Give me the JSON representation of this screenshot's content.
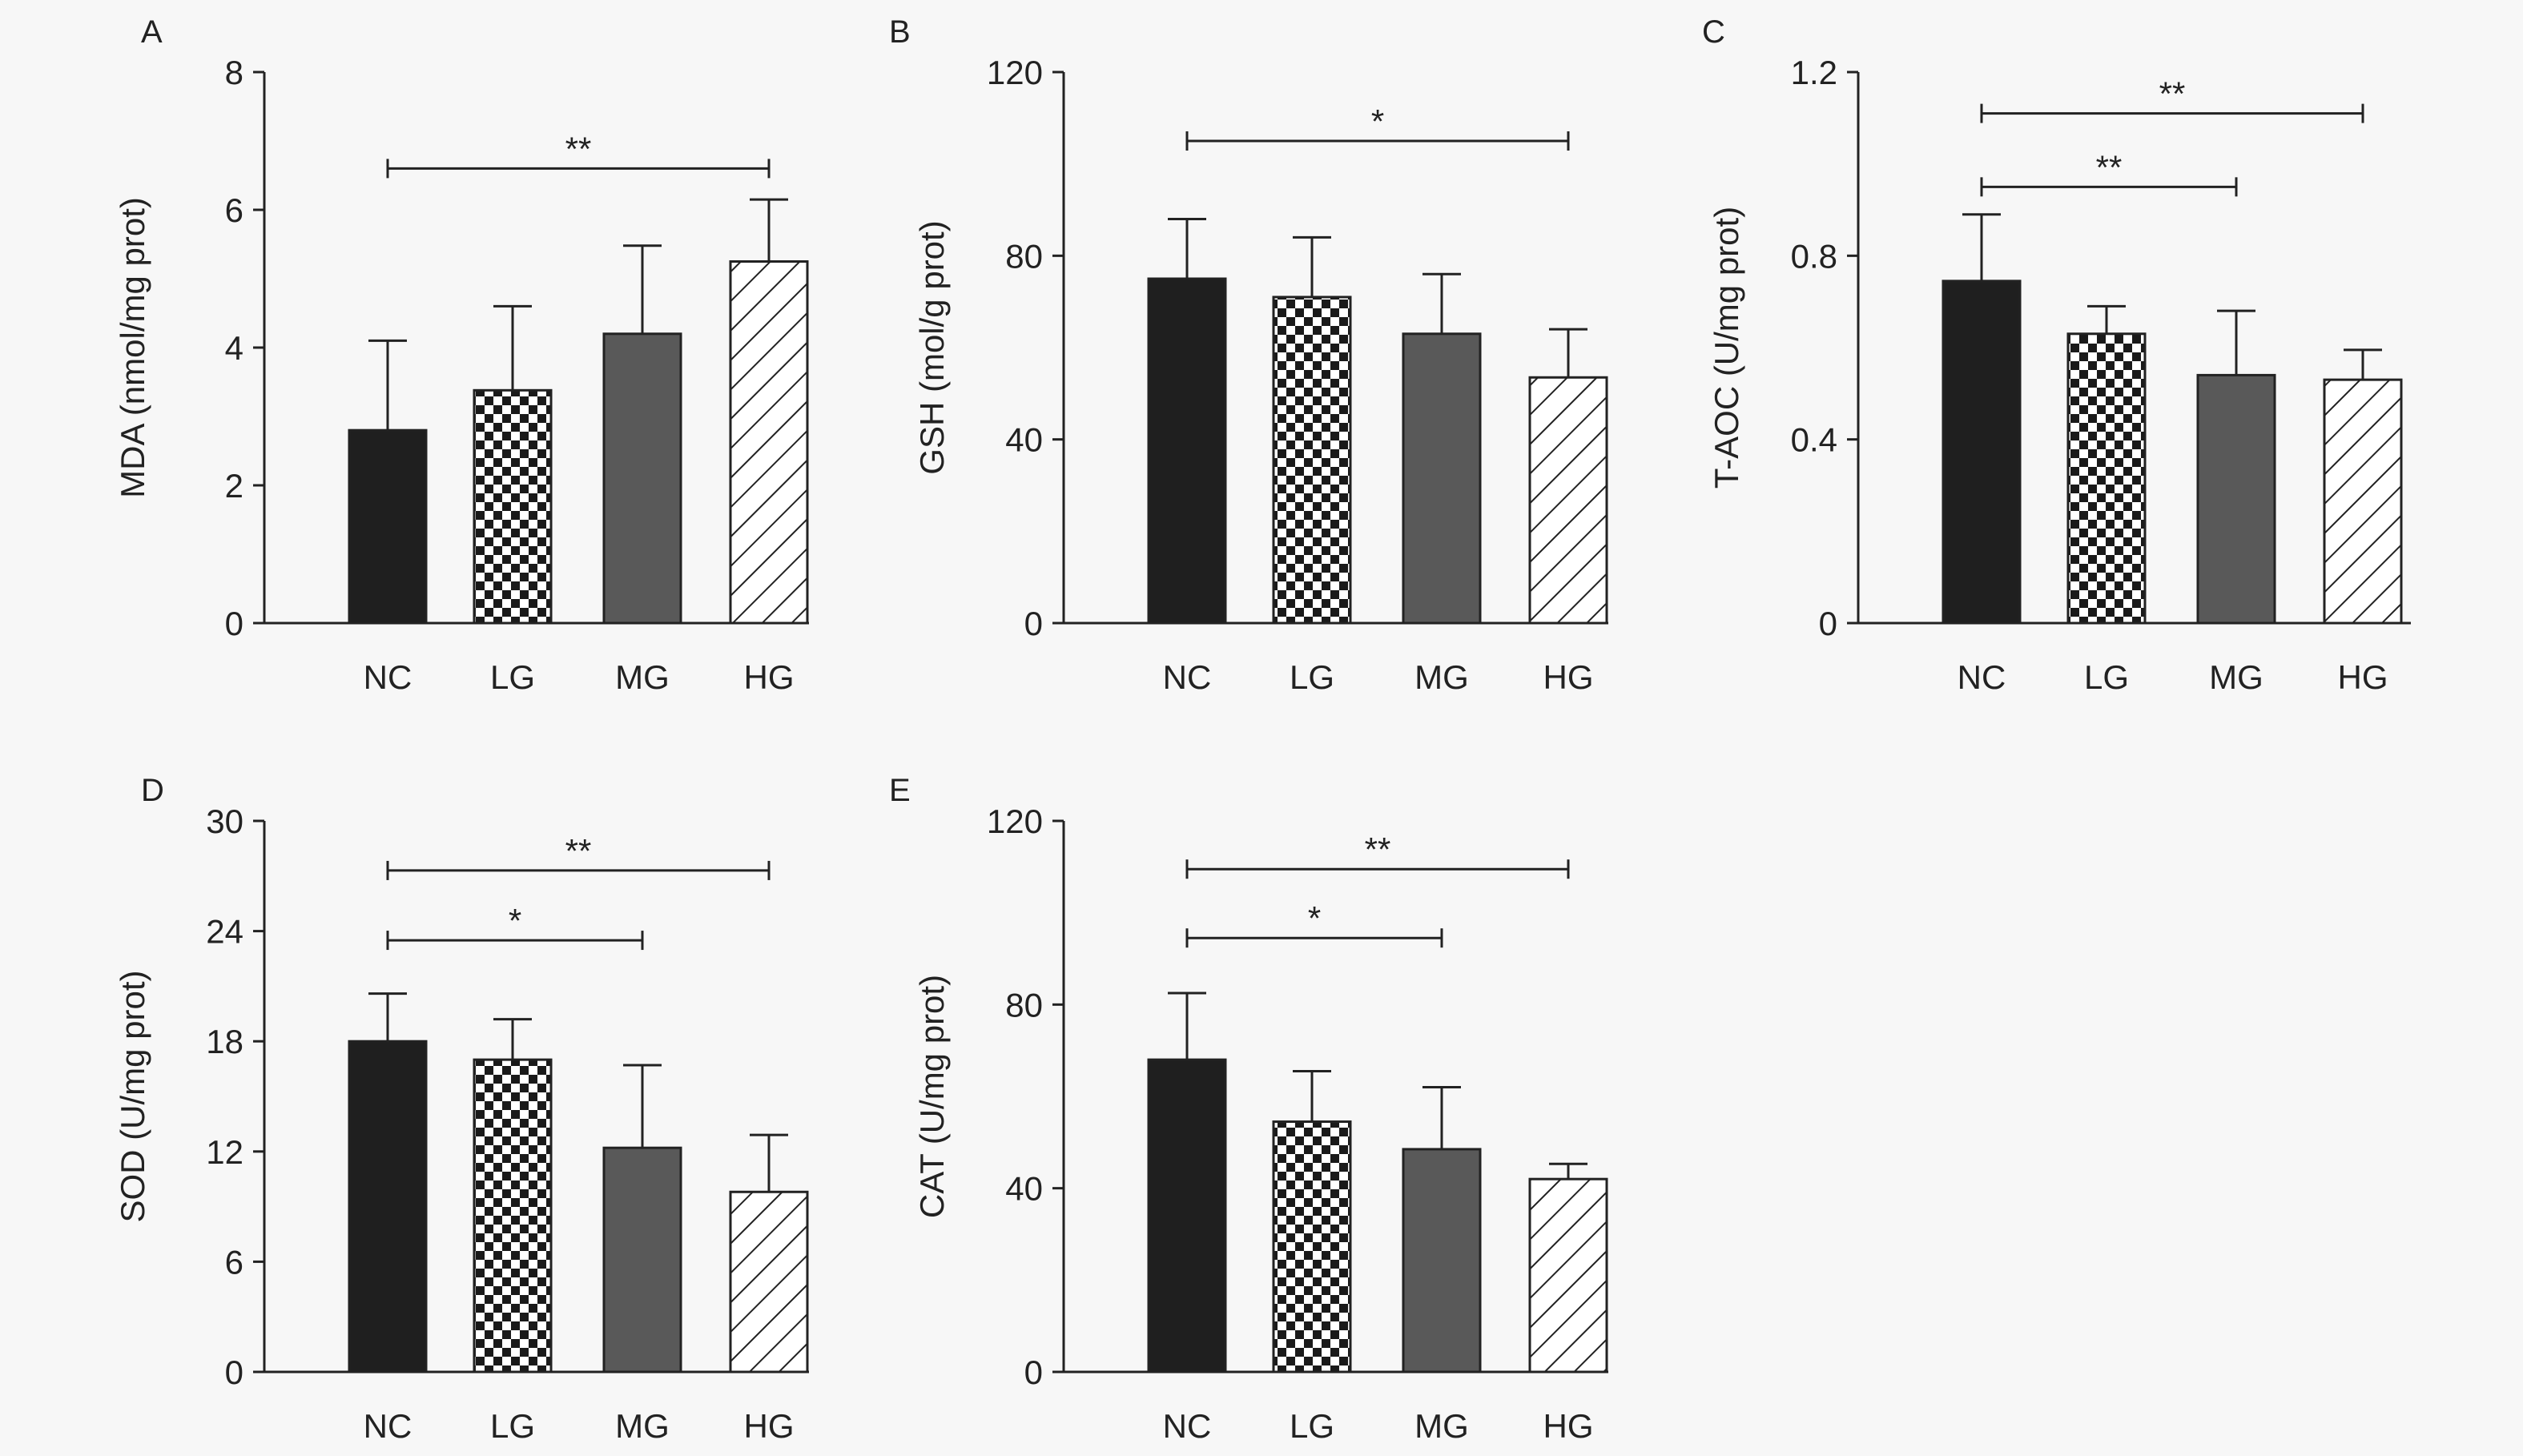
{
  "colors": {
    "background": "#f7f7f7",
    "axis": "#222222",
    "NC": "#1f1f1f",
    "LG": "#1a1a1a",
    "MG": "#595959",
    "HG_fill": "#ffffff",
    "HG_hatch": "#222222"
  },
  "chart_data": [
    {
      "panel": "A",
      "type": "bar",
      "categories": [
        "NC",
        "LG",
        "MG",
        "HG"
      ],
      "values": [
        2.8,
        3.38,
        4.2,
        5.25
      ],
      "errors": [
        1.3,
        1.22,
        1.28,
        0.9
      ],
      "ylabel": "MDA (nmol/mg prot)",
      "ylim": [
        0,
        8
      ],
      "yticks": [
        "0",
        "2",
        "4",
        "6",
        "8"
      ],
      "significance": [
        {
          "from": "NC",
          "to": "HG",
          "label": "**",
          "y": 6.6
        }
      ]
    },
    {
      "panel": "B",
      "type": "bar",
      "categories": [
        "NC",
        "LG",
        "MG",
        "HG"
      ],
      "values": [
        75,
        71,
        63,
        53.5
      ],
      "errors": [
        13,
        13,
        13,
        10.5
      ],
      "ylabel": "GSH (mol/g prot)",
      "ylim": [
        0,
        120
      ],
      "yticks": [
        "0",
        "40",
        "80",
        "120"
      ],
      "significance": [
        {
          "from": "NC",
          "to": "HG",
          "label": "*",
          "y": 105
        }
      ]
    },
    {
      "panel": "C",
      "type": "bar",
      "categories": [
        "NC",
        "LG",
        "MG",
        "HG"
      ],
      "values": [
        0.745,
        0.63,
        0.54,
        0.53
      ],
      "errors": [
        0.145,
        0.06,
        0.14,
        0.065
      ],
      "ylabel": "T-AOC (U/mg prot)",
      "ylim": [
        0,
        1.2
      ],
      "yticks": [
        "0",
        "0.4",
        "0.8",
        "1.2"
      ],
      "significance": [
        {
          "from": "NC",
          "to": "MG",
          "label": "**",
          "y": 0.95
        },
        {
          "from": "NC",
          "to": "HG",
          "label": "**",
          "y": 1.11
        }
      ]
    },
    {
      "panel": "D",
      "type": "bar",
      "categories": [
        "NC",
        "LG",
        "MG",
        "HG"
      ],
      "values": [
        18,
        17,
        12.2,
        9.8
      ],
      "errors": [
        2.6,
        2.2,
        4.5,
        3.1
      ],
      "ylabel": "SOD (U/mg prot)",
      "ylim": [
        0,
        30
      ],
      "yticks": [
        "0",
        "6",
        "12",
        "18",
        "24",
        "30"
      ],
      "significance": [
        {
          "from": "NC",
          "to": "MG",
          "label": "*",
          "y": 23.5
        },
        {
          "from": "NC",
          "to": "HG",
          "label": "**",
          "y": 27.3
        }
      ]
    },
    {
      "panel": "E",
      "type": "bar",
      "categories": [
        "NC",
        "LG",
        "MG",
        "HG"
      ],
      "values": [
        68,
        54.5,
        48.5,
        42
      ],
      "errors": [
        14.5,
        11,
        13.5,
        3.3
      ],
      "ylabel": "CAT (U/mg prot)",
      "ylim": [
        0,
        120
      ],
      "yticks": [
        "0",
        "40",
        "80",
        "120"
      ],
      "significance": [
        {
          "from": "NC",
          "to": "MG",
          "label": "*",
          "y": 94.5
        },
        {
          "from": "NC",
          "to": "HG",
          "label": "**",
          "y": 109.5
        }
      ]
    }
  ]
}
